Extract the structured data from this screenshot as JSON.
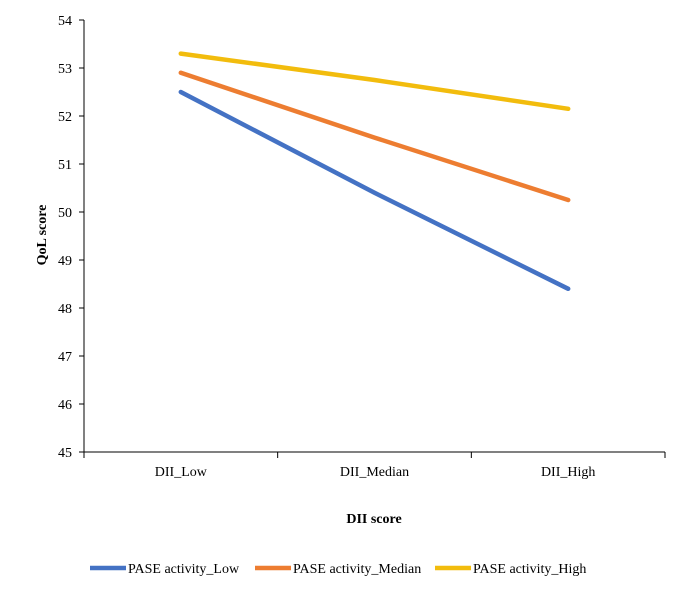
{
  "chart_data": {
    "type": "line",
    "title": "",
    "xlabel": "DII score",
    "ylabel": "QoL score",
    "categories": [
      "DII_Low",
      "DII_Median",
      "DII_High"
    ],
    "ylim": [
      45,
      54
    ],
    "yticks": [
      45,
      46,
      47,
      48,
      49,
      50,
      51,
      52,
      53,
      54
    ],
    "grid": false,
    "legend_position": "bottom",
    "series": [
      {
        "name": "PASE activity_Low",
        "color": "#4472C4",
        "values": [
          52.5,
          50.4,
          48.4
        ]
      },
      {
        "name": "PASE activity_Median",
        "color": "#ED7D31",
        "values": [
          52.9,
          51.55,
          50.25
        ]
      },
      {
        "name": "PASE activity_High",
        "color": "#F2BC0D",
        "values": [
          53.3,
          52.75,
          52.15
        ]
      }
    ]
  }
}
